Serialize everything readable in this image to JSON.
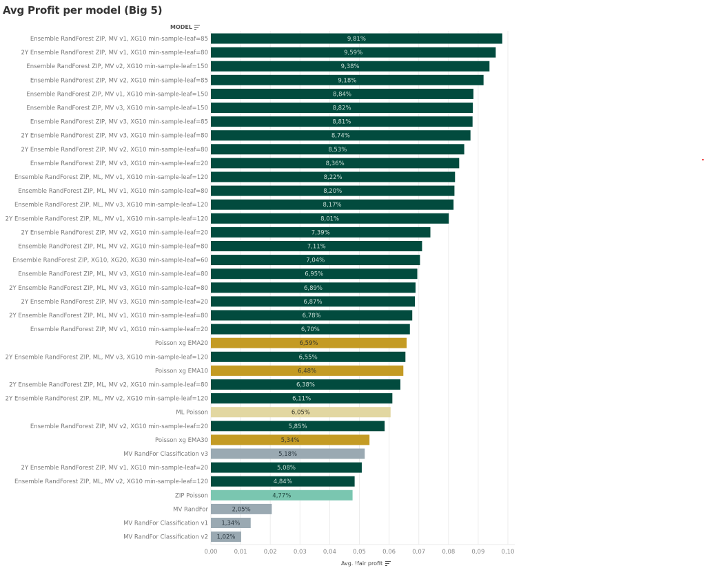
{
  "title": "Avg Profit per model (Big 5)",
  "row_header": "MODEL",
  "colors": {
    "ensemble": "#024b3e",
    "poisson_xg": "#c49b24",
    "ml_poisson": "#e2d7a1",
    "mv_randfor": "#9aa9b2",
    "zip_poisson": "#7ac6b0"
  },
  "chart_data": {
    "type": "bar",
    "orientation": "horizontal",
    "title": "Avg Profit per model (Big 5)",
    "xlabel": "Avg. !fair profit",
    "ylabel": "MODEL",
    "xlim": [
      0,
      0.1
    ],
    "xticks": [
      0.0,
      0.01,
      0.02,
      0.03,
      0.04,
      0.05,
      0.06,
      0.07,
      0.08,
      0.09,
      0.1
    ],
    "xtick_labels": [
      "0,00",
      "0,01",
      "0,02",
      "0,03",
      "0,04",
      "0,05",
      "0,06",
      "0,07",
      "0,08",
      "0,09",
      "0,10"
    ],
    "grid": true,
    "categories": [
      "Ensemble RandForest ZIP, MV v1, XG10 min-sample-leaf=85",
      "2Y Ensemble RandForest ZIP, MV v1, XG10 min-sample-leaf=80",
      "Ensemble RandForest ZIP, MV v2, XG10 min-sample-leaf=150",
      "Ensemble RandForest ZIP, MV v2, XG10 min-sample-leaf=85",
      "Ensemble RandForest ZIP, MV v1, XG10 min-sample-leaf=150",
      "Ensemble RandForest ZIP, MV v3, XG10 min-sample-leaf=150",
      "Ensemble RandForest ZIP, MV v3, XG10 min-sample-leaf=85",
      "2Y Ensemble RandForest ZIP, MV v3, XG10 min-sample-leaf=80",
      "2Y Ensemble RandForest ZIP, MV v2, XG10 min-sample-leaf=80",
      "Ensemble RandForest ZIP, MV v3, XG10 min-sample-leaf=20",
      "Ensemble RandForest ZIP, ML, MV v1, XG10 min-sample-leaf=120",
      "Ensemble RandForest ZIP, ML, MV v1, XG10 min-sample-leaf=80",
      "Ensemble RandForest ZIP, ML, MV v3, XG10 min-sample-leaf=120",
      "2Y Ensemble RandForest ZIP, ML, MV v1, XG10 min-sample-leaf=120",
      "2Y Ensemble RandForest ZIP, MV v2, XG10 min-sample-leaf=20",
      "Ensemble RandForest ZIP, ML, MV v2, XG10 min-sample-leaf=80",
      "Ensemble RandForest ZIP, XG10, XG20, XG30 min-sample-leaf=60",
      "Ensemble RandForest ZIP, ML, MV v3, XG10 min-sample-leaf=80",
      "2Y Ensemble RandForest ZIP, ML, MV v3, XG10 min-sample-leaf=80",
      "2Y Ensemble RandForest ZIP, MV v3, XG10 min-sample-leaf=20",
      "2Y Ensemble RandForest ZIP, ML, MV v1, XG10 min-sample-leaf=80",
      "Ensemble RandForest ZIP, MV v1, XG10 min-sample-leaf=20",
      "Poisson xg EMA20",
      "2Y Ensemble RandForest ZIP, ML, MV v3, XG10 min-sample-leaf=120",
      "Poisson xg EMA10",
      "2Y Ensemble RandForest ZIP, ML, MV v2, XG10 min-sample-leaf=80",
      "2Y Ensemble RandForest ZIP, ML, MV v2, XG10 min-sample-leaf=120",
      "ML Poisson",
      "Ensemble RandForest ZIP, MV v2, XG10 min-sample-leaf=20",
      "Poisson xg EMA30",
      "MV RandFor Classification v3",
      "2Y Ensemble RandForest ZIP, MV v1, XG10 min-sample-leaf=20",
      "Ensemble RandForest ZIP, ML, MV v2, XG10 min-sample-leaf=120",
      "ZIP Poisson",
      "MV RandFor",
      "MV RandFor Classification v1",
      "MV RandFor Classification v2"
    ],
    "values": [
      0.0981,
      0.0959,
      0.0938,
      0.0918,
      0.0884,
      0.0882,
      0.0881,
      0.0874,
      0.0853,
      0.0836,
      0.0822,
      0.082,
      0.0817,
      0.0801,
      0.0739,
      0.0711,
      0.0704,
      0.0695,
      0.0689,
      0.0687,
      0.0678,
      0.067,
      0.0659,
      0.0655,
      0.0648,
      0.0638,
      0.0611,
      0.0605,
      0.0585,
      0.0534,
      0.0518,
      0.0508,
      0.0484,
      0.0477,
      0.0205,
      0.0134,
      0.0102
    ],
    "data_labels": [
      "9,81%",
      "9,59%",
      "9,38%",
      "9,18%",
      "8,84%",
      "8,82%",
      "8,81%",
      "8,74%",
      "8,53%",
      "8,36%",
      "8,22%",
      "8,20%",
      "8,17%",
      "8,01%",
      "7,39%",
      "7,11%",
      "7,04%",
      "6,95%",
      "6,89%",
      "6,87%",
      "6,78%",
      "6,70%",
      "6,59%",
      "6,55%",
      "6,48%",
      "6,38%",
      "6,11%",
      "6,05%",
      "5,85%",
      "5,34%",
      "5,18%",
      "5,08%",
      "4,84%",
      "4,77%",
      "2,05%",
      "1,34%",
      "1,02%"
    ],
    "color_groups": [
      "ensemble",
      "ensemble",
      "ensemble",
      "ensemble",
      "ensemble",
      "ensemble",
      "ensemble",
      "ensemble",
      "ensemble",
      "ensemble",
      "ensemble",
      "ensemble",
      "ensemble",
      "ensemble",
      "ensemble",
      "ensemble",
      "ensemble",
      "ensemble",
      "ensemble",
      "ensemble",
      "ensemble",
      "ensemble",
      "poisson_xg",
      "ensemble",
      "poisson_xg",
      "ensemble",
      "ensemble",
      "ml_poisson",
      "ensemble",
      "poisson_xg",
      "mv_randfor",
      "ensemble",
      "ensemble",
      "zip_poisson",
      "mv_randfor",
      "mv_randfor",
      "mv_randfor"
    ],
    "sort": "descending"
  }
}
